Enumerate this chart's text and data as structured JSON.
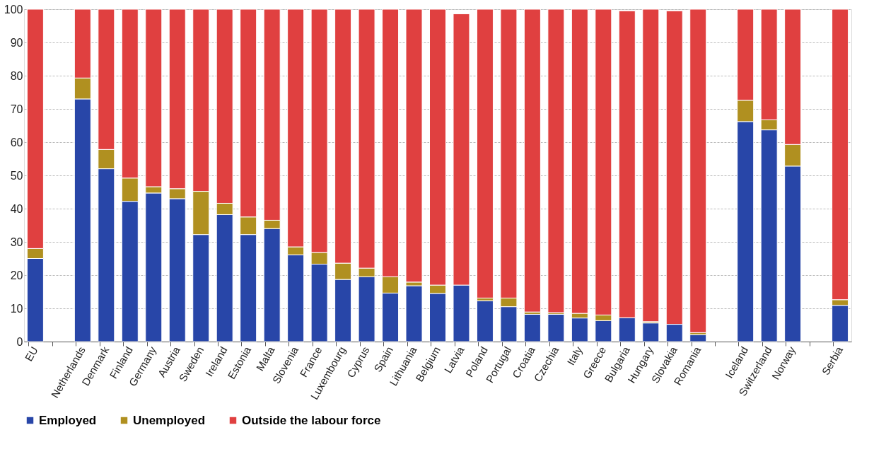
{
  "chart_data": {
    "type": "bar",
    "stacked": true,
    "categories": [
      "EU",
      null,
      "Netherlands",
      "Denmark",
      "Finland",
      "Germany",
      "Austria",
      "Sweden",
      "Ireland",
      "Estonia",
      "Malta",
      "Slovenia",
      "France",
      "Luxembourg",
      "Cyprus",
      "Spain",
      "Lithuania",
      "Belgium",
      "Latvia",
      "Poland",
      "Portugal",
      "Croatia",
      "Czechia",
      "Italy",
      "Greece",
      "Bulgaria",
      "Hungary",
      "Slovakia",
      "Romania",
      null,
      "Iceland",
      "Switzerland",
      "Norway",
      null,
      "Serbia"
    ],
    "series": [
      {
        "name": "Employed",
        "color": "#2846a8",
        "values": [
          25,
          null,
          73,
          52,
          42.2,
          44.7,
          43,
          32.2,
          38.2,
          32.2,
          34,
          26.1,
          23.3,
          18.7,
          19.5,
          14.6,
          16.8,
          14.5,
          17,
          12.3,
          10.5,
          8.2,
          8.2,
          7.1,
          6.3,
          7.2,
          5.6,
          5.2,
          2.1,
          null,
          66.2,
          63.7,
          52.8,
          null,
          10.9
        ]
      },
      {
        "name": "Unemployed",
        "color": "#b09020",
        "values": [
          3,
          null,
          6.3,
          5.8,
          7,
          1.9,
          3,
          13,
          3.4,
          5.3,
          2.5,
          2.4,
          3.5,
          4.9,
          2.6,
          4.9,
          1.1,
          2.5,
          0,
          0.8,
          2.6,
          0.7,
          0.5,
          1.4,
          1.7,
          0,
          0.4,
          0,
          0.6,
          null,
          6.4,
          3,
          6.5,
          null,
          1.7
        ]
      },
      {
        "name": "Outside the labour force",
        "color": "#e04040",
        "values": [
          72,
          null,
          20.7,
          42.2,
          50.8,
          53.4,
          54,
          54.8,
          58.4,
          62.5,
          63.5,
          71.5,
          73.2,
          76.4,
          77.9,
          80.5,
          82.1,
          83,
          81.6,
          86.9,
          86.9,
          91.1,
          91.3,
          91.5,
          92,
          92.3,
          94,
          94.3,
          97.3,
          null,
          27.4,
          33.3,
          40.7,
          null,
          87.4
        ]
      }
    ],
    "ylim": [
      0,
      100
    ],
    "yticks": [
      0,
      10,
      20,
      30,
      40,
      50,
      60,
      70,
      80,
      90,
      100
    ],
    "grid": "y",
    "legend": "bottom"
  }
}
